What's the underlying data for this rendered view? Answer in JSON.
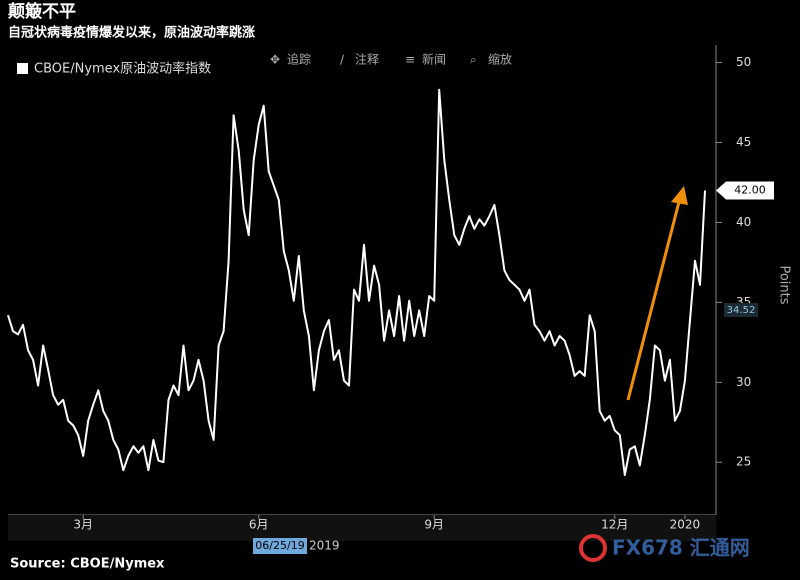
{
  "chart_data": {
    "type": "line",
    "title": "颠簸不平",
    "subtitle": "自冠状病毒疫情爆发以来，原油波动率跳涨",
    "source": "Source: CBOE/Nymex",
    "watermark": "FX678 汇通网",
    "toolbar": [
      "追踪",
      "注释",
      "新闻",
      "缩放"
    ],
    "y_axis_label": "Points",
    "cursor_date": "06/25/19",
    "year_label": "2019",
    "grid": false,
    "categories": [
      null,
      null,
      null,
      null,
      null,
      null,
      null,
      null,
      null,
      null,
      null,
      null,
      null,
      null,
      null,
      "3月",
      null,
      null,
      null,
      null,
      null,
      null,
      null,
      null,
      null,
      null,
      null,
      null,
      null,
      null,
      null,
      null,
      null,
      null,
      null,
      null,
      null,
      null,
      null,
      null,
      null,
      null,
      null,
      null,
      null,
      null,
      null,
      null,
      null,
      null,
      "6月",
      null,
      null,
      null,
      null,
      null,
      null,
      null,
      null,
      null,
      null,
      null,
      null,
      null,
      null,
      null,
      null,
      null,
      null,
      null,
      null,
      null,
      null,
      null,
      null,
      null,
      null,
      null,
      null,
      null,
      null,
      null,
      null,
      null,
      null,
      "9月",
      null,
      null,
      null,
      null,
      null,
      null,
      null,
      null,
      null,
      null,
      null,
      null,
      null,
      null,
      null,
      null,
      null,
      null,
      null,
      null,
      null,
      null,
      null,
      null,
      null,
      null,
      null,
      null,
      null,
      null,
      null,
      null,
      null,
      null,
      null,
      "12月",
      null,
      null,
      null,
      null,
      null,
      null,
      null,
      null,
      null,
      null,
      null,
      null,
      null,
      "2020",
      null,
      null,
      null,
      null
    ],
    "series": [
      {
        "name": "CBOE/Nymex原油波动率指数",
        "color": "#ffffff",
        "values": [
          34.2,
          33.2,
          33,
          33.6,
          32,
          31.4,
          29.8,
          32.3,
          30.8,
          29.2,
          28.6,
          28.9,
          27.6,
          27.3,
          26.7,
          25.4,
          27.6,
          28.6,
          29.5,
          28.2,
          27.6,
          26.4,
          25.8,
          24.5,
          25.4,
          26,
          25.6,
          26,
          24.5,
          26.4,
          25.1,
          25,
          28.9,
          29.8,
          29.2,
          32.3,
          29.5,
          30.1,
          31.4,
          30.1,
          27.6,
          26.4,
          32.3,
          33.2,
          37.6,
          46.7,
          44.5,
          40.8,
          39.2,
          43.9,
          46.1,
          47.3,
          43.2,
          42.3,
          41.4,
          38.2,
          37,
          35.1,
          37.9,
          34.5,
          32.9,
          29.5,
          32,
          33.2,
          33.9,
          31.4,
          32,
          30.1,
          29.8,
          35.8,
          35.1,
          38.6,
          35.1,
          37.3,
          36.1,
          32.6,
          34.5,
          32.9,
          35.4,
          32.6,
          35.1,
          32.9,
          34.5,
          32.9,
          35.4,
          35.1,
          48.3,
          43.9,
          41.4,
          39.2,
          38.6,
          39.6,
          40.4,
          39.6,
          40.2,
          39.8,
          40.4,
          41.1,
          39.2,
          37,
          36.4,
          36.1,
          35.8,
          35.1,
          35.8,
          33.6,
          33.2,
          32.6,
          33.2,
          32.3,
          32.9,
          32.6,
          31.7,
          30.4,
          30.7,
          30.4,
          34.2,
          33.2,
          28.2,
          27.6,
          27.9,
          27,
          26.7,
          24.2,
          25.8,
          26,
          24.8,
          26.7,
          28.9,
          32.3,
          32,
          30.1,
          31.4,
          27.6,
          28.2,
          30.1,
          33.9,
          37.6,
          36.1,
          42
        ]
      }
    ],
    "tags": [
      {
        "value": 42,
        "label": "42.00"
      },
      {
        "value": 34.52,
        "label": "34.52"
      }
    ],
    "ylim": [
      21.7,
      51.1
    ],
    "yticks": [
      25,
      30,
      35,
      40,
      45,
      50
    ]
  }
}
